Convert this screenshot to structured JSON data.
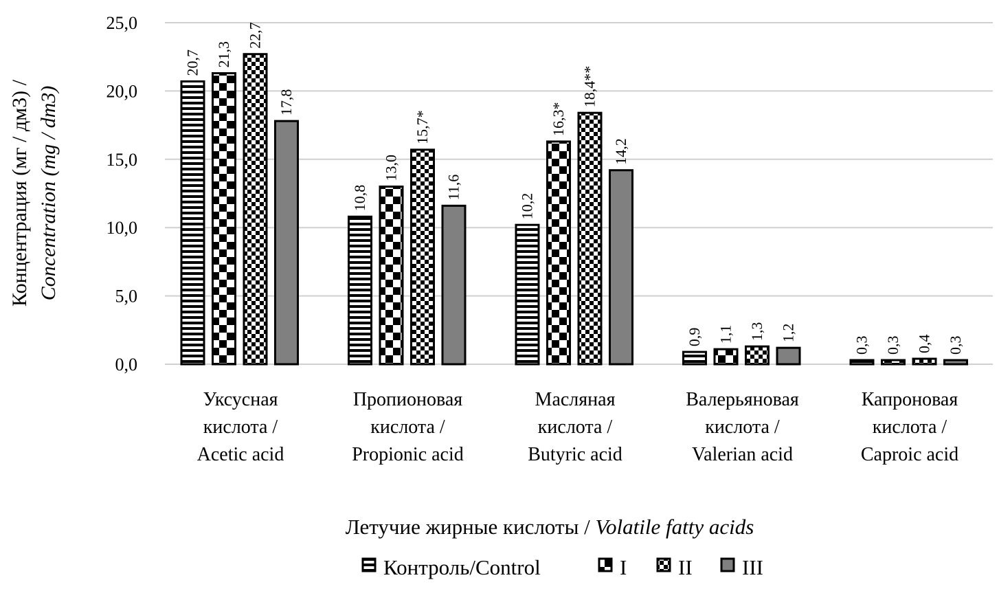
{
  "chart_data": {
    "type": "bar",
    "ylabel_line1": "Концентрация (мг / дм3) /",
    "ylabel_line2": "Concentration (mg / dm3)",
    "xlabel_ru": "Летучие жирные кислоты / ",
    "xlabel_en": "Volatile fatty acids",
    "ylim": [
      0,
      25
    ],
    "yticks": [
      "0,0",
      "5,0",
      "10,0",
      "15,0",
      "20,0",
      "25,0"
    ],
    "ytick_values": [
      0,
      5,
      10,
      15,
      20,
      25
    ],
    "grid": true,
    "legend_position": "bottom",
    "categories": [
      [
        "Уксусная",
        "кислота /",
        "Acetic acid"
      ],
      [
        "Пропионовая",
        "кислота /",
        "Propionic acid"
      ],
      [
        "Масляная",
        "кислота /",
        "Butyric acid"
      ],
      [
        "Валерьяновая",
        "кислота /",
        "Valerian  acid"
      ],
      [
        "Капроновая",
        "кислота /",
        "Caproic acid"
      ]
    ],
    "series": [
      {
        "name": "Контроль/Control",
        "pattern": "horizontal-stripes",
        "values": [
          20.7,
          10.8,
          10.2,
          0.9,
          0.3
        ],
        "labels": [
          "20,7",
          "10,8",
          "10,2",
          "0,9",
          "0,3"
        ]
      },
      {
        "name": "I",
        "pattern": "large-checker",
        "values": [
          21.3,
          13.0,
          16.3,
          1.1,
          0.3
        ],
        "labels": [
          "21,3",
          "13,0",
          "16,3*",
          "1,1",
          "0,3"
        ]
      },
      {
        "name": "II",
        "pattern": "small-checker",
        "values": [
          22.7,
          15.7,
          18.4,
          1.3,
          0.4
        ],
        "labels": [
          "22,7",
          "15,7*",
          "18,4**",
          "1,3",
          "0,4"
        ]
      },
      {
        "name": "III",
        "pattern": "solid-gray",
        "color": "#808080",
        "values": [
          17.8,
          11.6,
          14.2,
          1.2,
          0.3
        ],
        "labels": [
          "17,8",
          "11,6",
          "14,2",
          "1,2",
          "0,3"
        ]
      }
    ]
  }
}
